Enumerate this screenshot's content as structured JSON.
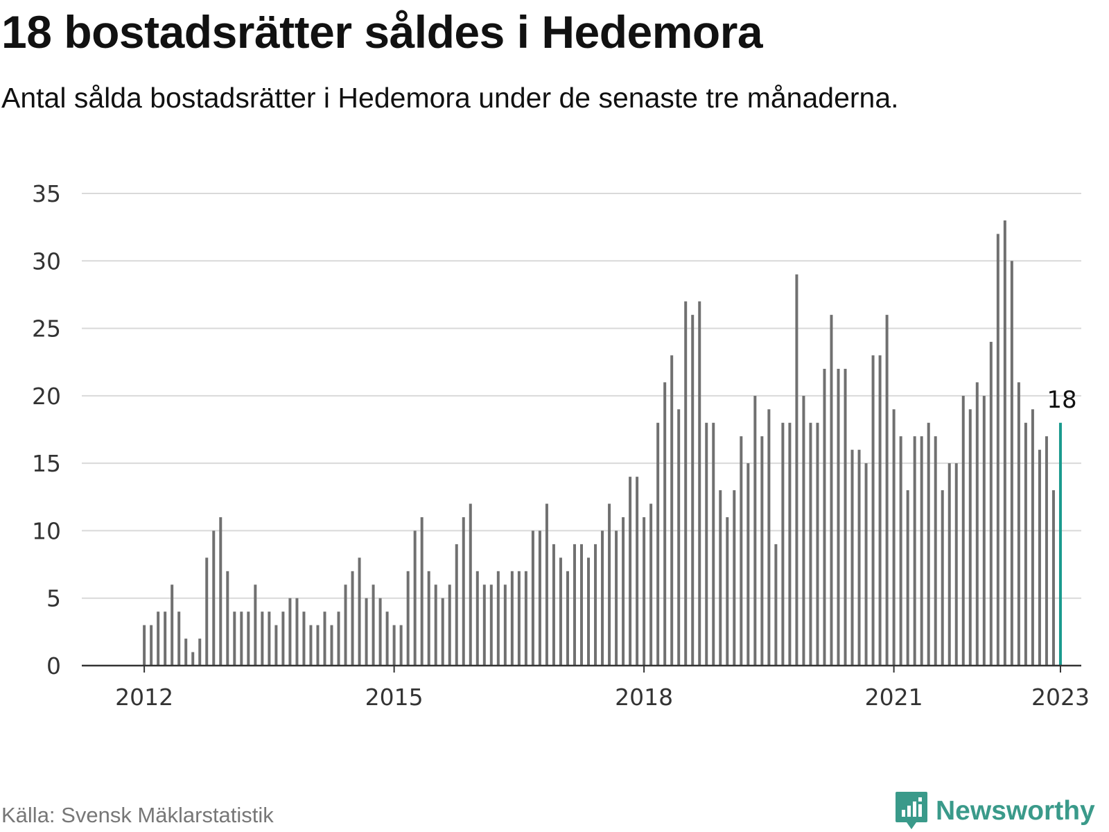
{
  "header": {
    "title": "18 bostadsrätter såldes i Hedemora",
    "subtitle": "Antal sålda bostadsrätter i Hedemora under de senaste tre månaderna."
  },
  "footer": {
    "source": "Källa: Svensk Mäklarstatistik",
    "brand": "Newsworthy"
  },
  "colors": {
    "bar": "#707070",
    "highlight": "#1a9a8e",
    "grid": "#d9d9d9",
    "axis": "#333333",
    "brand": "#3a9a8a"
  },
  "chart_data": {
    "type": "bar",
    "title": "18 bostadsrätter såldes i Hedemora",
    "subtitle": "Antal sålda bostadsrätter i Hedemora under de senaste tre månaderna.",
    "x_unit": "month",
    "x_start": "2012-01",
    "x_end": "2023-01",
    "xlim": [
      "2011-04",
      "2023-04"
    ],
    "x_ticks": [
      "2012",
      "2015",
      "2018",
      "2021",
      "2023"
    ],
    "y_ticks": [
      0,
      5,
      10,
      15,
      20,
      25,
      30,
      35
    ],
    "ylim": [
      0,
      35
    ],
    "grid": true,
    "highlight_last": true,
    "last_label": "18",
    "values": [
      3,
      3,
      4,
      4,
      6,
      4,
      2,
      1,
      2,
      8,
      10,
      11,
      7,
      4,
      4,
      4,
      6,
      4,
      4,
      3,
      4,
      5,
      5,
      4,
      3,
      3,
      4,
      3,
      4,
      6,
      7,
      8,
      5,
      6,
      5,
      4,
      3,
      3,
      7,
      10,
      11,
      7,
      6,
      5,
      6,
      9,
      11,
      12,
      7,
      6,
      6,
      7,
      6,
      7,
      7,
      7,
      10,
      10,
      12,
      9,
      8,
      7,
      9,
      9,
      8,
      9,
      10,
      12,
      10,
      11,
      14,
      14,
      11,
      12,
      18,
      21,
      23,
      19,
      27,
      26,
      27,
      18,
      18,
      13,
      11,
      13,
      17,
      15,
      20,
      17,
      19,
      9,
      18,
      18,
      29,
      20,
      18,
      18,
      22,
      26,
      22,
      22,
      16,
      16,
      15,
      23,
      23,
      26,
      19,
      17,
      13,
      17,
      17,
      18,
      17,
      13,
      15,
      15,
      20,
      19,
      21,
      20,
      24,
      32,
      33,
      30,
      21,
      18,
      19,
      16,
      17,
      13,
      18
    ]
  }
}
